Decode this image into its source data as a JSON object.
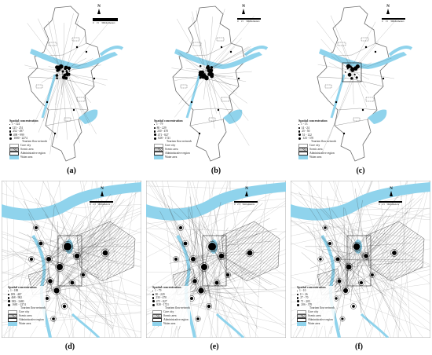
{
  "figure": {
    "panels": [
      {
        "id": "a",
        "caption": "(a)",
        "north": "N",
        "scale": {
          "ticks": [
            "0",
            "15",
            "30"
          ],
          "unit": "Kilometers"
        },
        "legend": {
          "title": "Spatial concentration",
          "classes": [
            "1 - 124",
            "125 - 251",
            "252 - 497",
            "498 - 999",
            "1000 - 2274"
          ],
          "items": [
            "Tourism flow network",
            "Core city",
            "Scenic area",
            "Administrative region",
            "Water area"
          ]
        }
      },
      {
        "id": "b",
        "caption": "(b)",
        "north": "N",
        "scale": {
          "ticks": [
            "0",
            "15",
            "30"
          ],
          "unit": "Kilometers"
        },
        "legend": {
          "title": "Spatial concentration",
          "classes": [
            "1 - 79",
            "80 - 229",
            "230 - 470",
            "471 - 827",
            "828 - 1721"
          ],
          "items": [
            "Tourism flow network",
            "Core city",
            "Scenic area",
            "Administrative region",
            "Water area"
          ]
        }
      },
      {
        "id": "c",
        "caption": "(c)",
        "north": "N",
        "scale": {
          "ticks": [
            "0",
            "15",
            "30"
          ],
          "unit": "Kilometers"
        },
        "legend": {
          "title": "Spatial concentration",
          "classes": [
            "1 - 13",
            "14 - 24",
            "25 - 50",
            "51 - 122",
            "123 - 370"
          ],
          "items": [
            "Tourism flow network",
            "Core city",
            "Scenic area",
            "Administrative region",
            "Water area"
          ]
        }
      },
      {
        "id": "d",
        "caption": "(d)",
        "north": "N",
        "scale": {
          "ticks": [
            "0",
            "2.5",
            "5"
          ],
          "unit": "Kilometers"
        },
        "legend": {
          "title": "Spatial concentration",
          "classes": [
            "1 - 188",
            "189 - 467",
            "468 - 982",
            "983 - 1680",
            "1681 - 2274"
          ],
          "items": [
            "Tourism flow network",
            "Core city",
            "Scenic area",
            "Administrative region",
            "Water area"
          ]
        }
      },
      {
        "id": "e",
        "caption": "(e)",
        "north": "N",
        "scale": {
          "ticks": [
            "0",
            "2.5",
            "5"
          ],
          "unit": "Kilometers"
        },
        "legend": {
          "title": "Spatial concentration",
          "classes": [
            "1 - 79",
            "80 - 229",
            "230 - 470",
            "471 - 827",
            "828 - 1721"
          ],
          "items": [
            "Tourism flow network",
            "Core city",
            "Scenic area",
            "Administrative region",
            "Water area"
          ]
        }
      },
      {
        "id": "f",
        "caption": "(f)",
        "north": "N",
        "scale": {
          "ticks": [
            "0",
            "2.5",
            "5"
          ],
          "unit": "Kilometers"
        },
        "legend": {
          "title": "Spatial concentration",
          "classes": [
            "1 - 10",
            "11 - 26",
            "27 - 70",
            "71 - 205",
            "206 - 370"
          ],
          "items": [
            "Tourism flow network",
            "Core city",
            "Scenic area",
            "Administrative region",
            "Water area"
          ]
        }
      }
    ],
    "colors": {
      "water": "#8fd3ec",
      "line": "#3a3a3a",
      "boundary": "#6d6d6d",
      "node": "#000000"
    }
  }
}
